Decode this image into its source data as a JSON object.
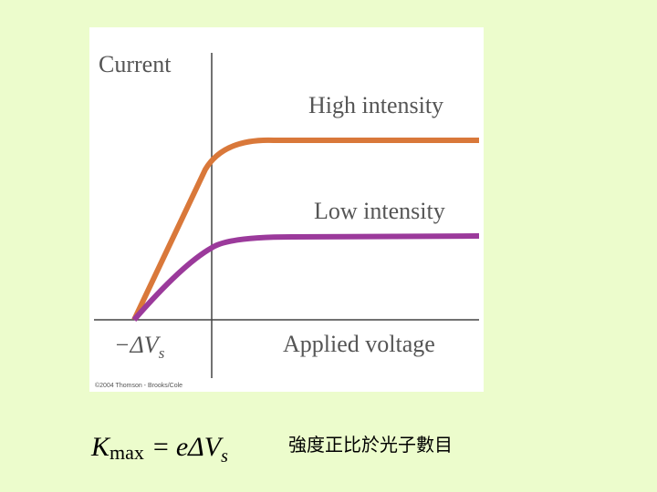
{
  "figure": {
    "y_axis_label": "Current",
    "x_axis_label": "Applied voltage",
    "curves": [
      {
        "label": "High intensity"
      },
      {
        "label": "Low intensity"
      }
    ],
    "stopping_potential": {
      "label": "−ΔV",
      "subscript": "s"
    },
    "credit": "©2004 Thomson - Brooks/Cole"
  },
  "formula": {
    "symbol": "K",
    "subscript": "max",
    "equals": "=",
    "rhs": "eΔV",
    "rhs_subscript": "s"
  },
  "caption": "強度正比於光子數目"
}
